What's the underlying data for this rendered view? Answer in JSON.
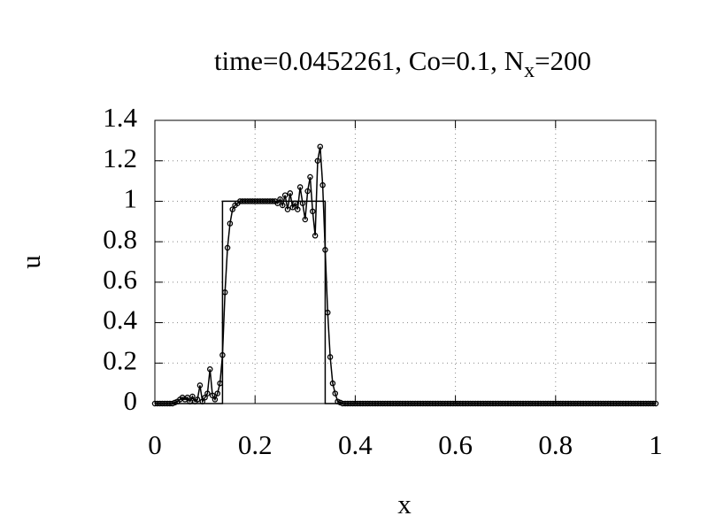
{
  "chart_data": {
    "type": "line",
    "title": "time=0.0452261, Co=0.1, N",
    "title_subscript": "x",
    "title_suffix": "=200",
    "x_label": "x",
    "y_label": "u",
    "xlim": [
      0,
      1
    ],
    "ylim": [
      0,
      1.4
    ],
    "xticks": [
      0,
      0.2,
      0.4,
      0.6,
      0.8,
      1
    ],
    "yticks": [
      0,
      0.2,
      0.4,
      0.6,
      0.8,
      1,
      1.2,
      1.4
    ],
    "grid": true,
    "series": [
      {
        "color": "#000000",
        "markers": false,
        "x": [
          0,
          0.135,
          0.135,
          0.34,
          0.34,
          1
        ],
        "values": [
          0,
          0,
          1,
          1,
          0,
          0
        ]
      },
      {
        "color": "#000000",
        "markers": true,
        "x": [
          0,
          0.005,
          0.01,
          0.015,
          0.02,
          0.025,
          0.03,
          0.035,
          0.04,
          0.045,
          0.05,
          0.055,
          0.06,
          0.065,
          0.07,
          0.075,
          0.08,
          0.085,
          0.09,
          0.095,
          0.1,
          0.105,
          0.11,
          0.115,
          0.12,
          0.125,
          0.13,
          0.135,
          0.14,
          0.145,
          0.15,
          0.155,
          0.16,
          0.165,
          0.17,
          0.175,
          0.18,
          0.185,
          0.19,
          0.195,
          0.2,
          0.205,
          0.21,
          0.215,
          0.22,
          0.225,
          0.23,
          0.235,
          0.24,
          0.245,
          0.25,
          0.255,
          0.26,
          0.265,
          0.27,
          0.275,
          0.28,
          0.285,
          0.29,
          0.295,
          0.3,
          0.305,
          0.31,
          0.315,
          0.32,
          0.325,
          0.33,
          0.335,
          0.34,
          0.345,
          0.35,
          0.355,
          0.36,
          0.365,
          0.37,
          0.375,
          0.38,
          0.385,
          0.39,
          0.395,
          0.4,
          0.405,
          0.41,
          0.415,
          0.42,
          0.425,
          0.43,
          0.435,
          0.44,
          0.445,
          0.45,
          0.455,
          0.46,
          0.465,
          0.47,
          0.475,
          0.48,
          0.485,
          0.49,
          0.495,
          0.5,
          0.505,
          0.51,
          0.515,
          0.52,
          0.525,
          0.53,
          0.535,
          0.54,
          0.545,
          0.55,
          0.555,
          0.56,
          0.565,
          0.57,
          0.575,
          0.58,
          0.585,
          0.59,
          0.595,
          0.6,
          0.605,
          0.61,
          0.615,
          0.62,
          0.625,
          0.63,
          0.635,
          0.64,
          0.645,
          0.65,
          0.655,
          0.66,
          0.665,
          0.67,
          0.675,
          0.68,
          0.685,
          0.69,
          0.695,
          0.7,
          0.705,
          0.71,
          0.715,
          0.72,
          0.725,
          0.73,
          0.735,
          0.74,
          0.745,
          0.75,
          0.755,
          0.76,
          0.765,
          0.77,
          0.775,
          0.78,
          0.785,
          0.79,
          0.795,
          0.8,
          0.805,
          0.81,
          0.815,
          0.82,
          0.825,
          0.83,
          0.835,
          0.84,
          0.845,
          0.85,
          0.855,
          0.86,
          0.865,
          0.87,
          0.875,
          0.88,
          0.885,
          0.89,
          0.895,
          0.9,
          0.905,
          0.91,
          0.915,
          0.92,
          0.925,
          0.93,
          0.935,
          0.94,
          0.945,
          0.95,
          0.955,
          0.96,
          0.965,
          0.97,
          0.975,
          0.98,
          0.985,
          0.99,
          0.995,
          1
        ],
        "values": [
          0,
          0,
          0,
          0,
          0,
          0,
          0,
          0,
          0.005,
          0.01,
          0.02,
          0.03,
          0.02,
          0.03,
          0.01,
          0.035,
          0.01,
          0.02,
          0.09,
          0.01,
          0.03,
          0.05,
          0.17,
          0.04,
          0.02,
          0.05,
          0.1,
          0.24,
          0.55,
          0.77,
          0.89,
          0.96,
          0.98,
          0.99,
          1,
          1,
          1,
          1,
          1,
          1,
          1,
          1,
          1,
          1,
          1,
          1,
          1,
          1,
          1,
          0.99,
          1.01,
          0.98,
          1.03,
          0.96,
          1.04,
          0.97,
          0.99,
          0.96,
          1.07,
          0.99,
          0.91,
          1.05,
          1.12,
          0.95,
          0.83,
          1.2,
          1.27,
          1.08,
          0.76,
          0.45,
          0.23,
          0.1,
          0.05,
          0.01,
          0.005,
          0,
          0,
          0,
          0,
          0,
          0,
          0,
          0,
          0,
          0,
          0,
          0,
          0,
          0,
          0,
          0,
          0,
          0,
          0,
          0,
          0,
          0,
          0,
          0,
          0,
          0,
          0,
          0,
          0,
          0,
          0,
          0,
          0,
          0,
          0,
          0,
          0,
          0,
          0,
          0,
          0,
          0,
          0,
          0,
          0,
          0,
          0,
          0,
          0,
          0,
          0,
          0,
          0,
          0,
          0,
          0,
          0,
          0,
          0,
          0,
          0,
          0,
          0,
          0,
          0,
          0,
          0,
          0,
          0,
          0,
          0,
          0,
          0,
          0,
          0,
          0,
          0,
          0,
          0,
          0,
          0,
          0,
          0,
          0,
          0,
          0,
          0,
          0,
          0,
          0,
          0,
          0,
          0,
          0,
          0,
          0,
          0,
          0,
          0,
          0,
          0,
          0,
          0,
          0,
          0,
          0,
          0,
          0,
          0,
          0,
          0,
          0,
          0,
          0,
          0,
          0,
          0,
          0,
          0,
          0,
          0,
          0,
          0,
          0,
          0,
          0
        ]
      }
    ]
  }
}
